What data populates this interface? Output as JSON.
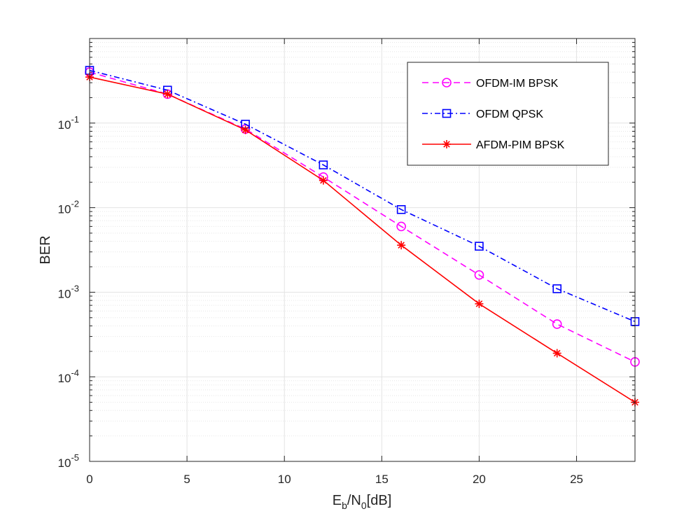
{
  "chart_data": {
    "type": "line",
    "title": "",
    "xlabel": "E_b/N_0[dB]",
    "ylabel": "BER",
    "xlim": [
      0,
      28
    ],
    "ylim": [
      1e-05,
      1
    ],
    "yscale": "log",
    "grid": true,
    "legend_position": "top-right",
    "xticks": [
      0,
      5,
      10,
      15,
      20,
      25
    ],
    "xtick_labels": [
      "0",
      "5",
      "10",
      "15",
      "20",
      "25"
    ],
    "yticks": [
      1e-05,
      0.0001,
      0.001,
      0.01,
      0.1
    ],
    "ytick_labels": [
      {
        "base": "10",
        "exp": "-5"
      },
      {
        "base": "10",
        "exp": "-4"
      },
      {
        "base": "10",
        "exp": "-3"
      },
      {
        "base": "10",
        "exp": "-2"
      },
      {
        "base": "10",
        "exp": "-1"
      }
    ],
    "x": [
      0,
      4,
      8,
      12,
      16,
      20,
      24,
      28
    ],
    "series": [
      {
        "name": "OFDM-IM BPSK",
        "color": "#ff00ff",
        "line_style": "dashed",
        "marker": "circle",
        "values": [
          0.4,
          0.22,
          0.085,
          0.023,
          0.006,
          0.0016,
          0.00042,
          0.00015
        ]
      },
      {
        "name": "OFDM QPSK",
        "color": "#0000ff",
        "line_style": "dash-dot",
        "marker": "square",
        "values": [
          0.42,
          0.245,
          0.097,
          0.032,
          0.0095,
          0.0035,
          0.0011,
          0.00045
        ]
      },
      {
        "name": "AFDM-PIM BPSK",
        "color": "#ff0000",
        "line_style": "solid",
        "marker": "asterisk",
        "values": [
          0.35,
          0.22,
          0.083,
          0.021,
          0.0036,
          0.00073,
          0.00019,
          5e-05
        ]
      }
    ]
  }
}
